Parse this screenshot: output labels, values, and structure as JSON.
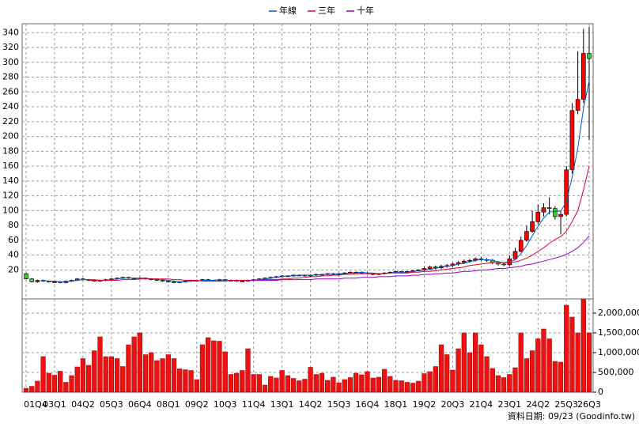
{
  "chart_data": {
    "type": "candlestick",
    "categories": [
      "01Q4",
      null,
      null,
      null,
      null,
      "03Q1",
      null,
      null,
      null,
      null,
      "04Q2",
      null,
      null,
      null,
      null,
      "05Q3",
      null,
      null,
      null,
      null,
      "06Q4",
      null,
      null,
      null,
      null,
      "08Q1",
      null,
      null,
      null,
      null,
      "09Q2",
      null,
      null,
      null,
      null,
      "10Q3",
      null,
      null,
      null,
      null,
      "11Q4",
      null,
      null,
      null,
      null,
      "13Q1",
      null,
      null,
      null,
      null,
      "14Q2",
      null,
      null,
      null,
      null,
      "15Q3",
      null,
      null,
      null,
      null,
      "16Q4",
      null,
      null,
      null,
      null,
      "18Q1",
      null,
      null,
      null,
      null,
      "19Q2",
      null,
      null,
      null,
      null,
      "20Q3",
      null,
      null,
      null,
      null,
      "21Q4",
      null,
      null,
      null,
      null,
      "23Q1",
      null,
      null,
      null,
      null,
      "24Q2",
      null,
      null,
      null,
      null,
      "25Q3",
      null,
      null,
      null,
      "26Q3"
    ],
    "open": [
      15,
      8,
      4,
      6,
      5,
      4,
      4,
      3,
      5,
      6,
      8,
      7,
      6,
      5,
      6,
      7,
      8,
      9,
      10,
      9,
      8,
      9,
      8,
      7,
      6,
      5,
      4,
      3,
      4,
      5,
      6,
      6,
      7,
      6,
      6,
      7,
      6,
      6,
      5,
      5,
      6,
      7,
      8,
      9,
      10,
      11,
      12,
      12,
      13,
      13,
      12,
      13,
      14,
      14,
      15,
      14,
      15,
      16,
      17,
      17,
      16,
      15,
      14,
      15,
      16,
      17,
      18,
      16,
      18,
      19,
      20,
      22,
      24,
      23,
      25,
      26,
      28,
      30,
      32,
      33,
      35,
      34,
      33,
      30,
      28,
      27,
      35,
      45,
      60,
      72,
      85,
      98,
      104,
      103,
      92,
      95,
      155,
      235,
      250,
      312
    ],
    "high": [
      16,
      9,
      7,
      7,
      6,
      5,
      5,
      6,
      7,
      9,
      9,
      8,
      7,
      7,
      8,
      9,
      10,
      11,
      11,
      10,
      10,
      10,
      9,
      8,
      7,
      6,
      5,
      5,
      6,
      7,
      7,
      8,
      8,
      7,
      8,
      8,
      7,
      7,
      6,
      7,
      8,
      9,
      10,
      11,
      12,
      13,
      13,
      14,
      14,
      14,
      14,
      15,
      15,
      16,
      16,
      16,
      17,
      18,
      18,
      18,
      17,
      16,
      16,
      17,
      18,
      19,
      19,
      19,
      20,
      21,
      24,
      26,
      26,
      27,
      28,
      30,
      32,
      34,
      35,
      37,
      37,
      36,
      35,
      32,
      30,
      40,
      50,
      65,
      80,
      100,
      108,
      110,
      118,
      106,
      100,
      160,
      245,
      315,
      345,
      348
    ],
    "low": [
      7,
      3,
      3,
      4,
      3,
      3,
      2,
      2,
      4,
      5,
      6,
      5,
      4,
      4,
      5,
      6,
      7,
      8,
      8,
      7,
      7,
      7,
      6,
      5,
      4,
      3,
      2,
      2,
      3,
      4,
      5,
      5,
      5,
      5,
      5,
      5,
      5,
      4,
      4,
      4,
      5,
      6,
      7,
      8,
      9,
      10,
      11,
      11,
      12,
      11,
      11,
      12,
      13,
      13,
      13,
      13,
      14,
      15,
      16,
      15,
      14,
      13,
      13,
      14,
      15,
      16,
      15,
      15,
      17,
      18,
      18,
      20,
      21,
      21,
      23,
      24,
      26,
      28,
      30,
      31,
      32,
      31,
      28,
      26,
      25,
      25,
      33,
      44,
      58,
      70,
      82,
      92,
      95,
      88,
      68,
      92,
      150,
      230,
      245,
      195
    ],
    "close": [
      8,
      4,
      6,
      5,
      4,
      4,
      3,
      5,
      6,
      8,
      7,
      6,
      5,
      6,
      7,
      8,
      9,
      10,
      9,
      8,
      9,
      8,
      7,
      6,
      5,
      4,
      3,
      4,
      5,
      6,
      6,
      7,
      6,
      6,
      7,
      6,
      6,
      5,
      5,
      6,
      7,
      8,
      9,
      10,
      11,
      12,
      12,
      13,
      13,
      12,
      13,
      14,
      14,
      15,
      14,
      15,
      16,
      17,
      17,
      16,
      15,
      14,
      15,
      16,
      17,
      18,
      16,
      18,
      19,
      20,
      22,
      24,
      23,
      25,
      26,
      28,
      30,
      32,
      33,
      35,
      34,
      33,
      30,
      28,
      27,
      35,
      45,
      60,
      72,
      85,
      98,
      104,
      103,
      92,
      95,
      155,
      235,
      250,
      312,
      305
    ],
    "up_color": "#ff0000",
    "down_color": "#33cc33",
    "series": [
      {
        "name": "年線",
        "color": "#0055cc",
        "values": [
          null,
          null,
          null,
          6,
          5,
          5,
          4,
          4,
          5,
          6,
          7,
          7,
          7,
          6,
          6,
          7,
          8,
          9,
          9,
          9,
          9,
          9,
          8,
          8,
          7,
          6,
          5,
          4,
          4,
          5,
          5,
          6,
          6,
          6,
          7,
          6,
          6,
          6,
          6,
          6,
          6,
          7,
          8,
          9,
          10,
          11,
          12,
          12,
          13,
          13,
          13,
          13,
          14,
          14,
          14,
          15,
          15,
          16,
          16,
          17,
          16,
          16,
          15,
          15,
          16,
          17,
          17,
          17,
          18,
          19,
          20,
          21,
          22,
          24,
          25,
          26,
          28,
          29,
          31,
          33,
          34,
          34,
          33,
          31,
          30,
          31,
          34,
          42,
          53,
          66,
          79,
          90,
          98,
          99,
          99,
          112,
          145,
          184,
          238,
          275
        ]
      },
      {
        "name": "三年",
        "color": "#e0002a",
        "values": [
          null,
          null,
          null,
          null,
          null,
          null,
          null,
          null,
          null,
          null,
          null,
          6,
          6,
          6,
          6,
          6,
          6,
          7,
          7,
          7,
          8,
          8,
          8,
          8,
          8,
          8,
          7,
          7,
          6,
          6,
          6,
          5,
          5,
          5,
          5,
          5,
          6,
          6,
          6,
          6,
          6,
          6,
          7,
          7,
          7,
          8,
          8,
          9,
          9,
          10,
          11,
          11,
          12,
          12,
          13,
          13,
          14,
          14,
          15,
          15,
          15,
          15,
          15,
          15,
          16,
          16,
          16,
          16,
          17,
          17,
          18,
          18,
          19,
          20,
          21,
          22,
          23,
          24,
          26,
          27,
          28,
          29,
          30,
          30,
          30,
          30,
          31,
          33,
          36,
          40,
          45,
          50,
          56,
          61,
          65,
          72,
          85,
          100,
          128,
          160
        ]
      },
      {
        "name": "十年",
        "color": "#9900cc",
        "values": [
          null,
          null,
          null,
          null,
          null,
          null,
          null,
          null,
          null,
          null,
          null,
          null,
          null,
          null,
          null,
          null,
          null,
          null,
          null,
          null,
          null,
          null,
          null,
          null,
          null,
          null,
          null,
          null,
          null,
          null,
          null,
          null,
          null,
          null,
          null,
          null,
          null,
          null,
          null,
          6,
          6,
          6,
          6,
          6,
          6,
          7,
          7,
          7,
          7,
          7,
          7,
          8,
          8,
          8,
          8,
          8,
          9,
          9,
          9,
          10,
          10,
          10,
          11,
          11,
          11,
          12,
          12,
          12,
          13,
          13,
          14,
          14,
          15,
          15,
          16,
          16,
          17,
          18,
          18,
          19,
          20,
          20,
          21,
          22,
          22,
          23,
          24,
          25,
          27,
          28,
          30,
          32,
          34,
          36,
          38,
          41,
          45,
          50,
          57,
          66
        ]
      }
    ],
    "ylim": [
      -19,
      352
    ],
    "yticks": [
      20,
      40,
      60,
      80,
      100,
      120,
      140,
      160,
      180,
      200,
      220,
      240,
      260,
      280,
      300,
      320,
      340
    ],
    "grid": true,
    "volume": {
      "color": "#ee1111",
      "values": [
        100000,
        150000,
        280000,
        900000,
        480000,
        430000,
        530000,
        250000,
        420000,
        640000,
        850000,
        680000,
        1050000,
        1400000,
        900000,
        900000,
        850000,
        650000,
        1200000,
        1400000,
        1500000,
        950000,
        1000000,
        800000,
        850000,
        950000,
        850000,
        590000,
        570000,
        550000,
        320000,
        1200000,
        1380000,
        1300000,
        1290000,
        1020000,
        450000,
        480000,
        550000,
        1100000,
        450000,
        450000,
        180000,
        400000,
        360000,
        550000,
        420000,
        350000,
        290000,
        330000,
        630000,
        450000,
        480000,
        300000,
        380000,
        240000,
        320000,
        370000,
        480000,
        440000,
        520000,
        360000,
        380000,
        580000,
        400000,
        300000,
        290000,
        250000,
        230000,
        280000,
        470000,
        520000,
        650000,
        1200000,
        950000,
        560000,
        1100000,
        1500000,
        1000000,
        1500000,
        1200000,
        900000,
        600000,
        420000,
        370000,
        450000,
        620000,
        1500000,
        850000,
        1050000,
        1350000,
        1600000,
        1350000,
        780000,
        760000,
        2200000,
        1900000,
        1500000,
        2350000,
        1500000
      ],
      "ylim": [
        0,
        2360000
      ],
      "yticks": [
        0,
        {
          "value": 500000,
          "label": "500,000"
        },
        {
          "value": 1000000,
          "label": "1,000,000"
        },
        {
          "value": 1500000,
          "label": "1,500,000"
        },
        {
          "value": 2000000,
          "label": "2,000,000"
        }
      ]
    },
    "footer": "資料日期: 09/23 (Goodinfo.tw)"
  }
}
